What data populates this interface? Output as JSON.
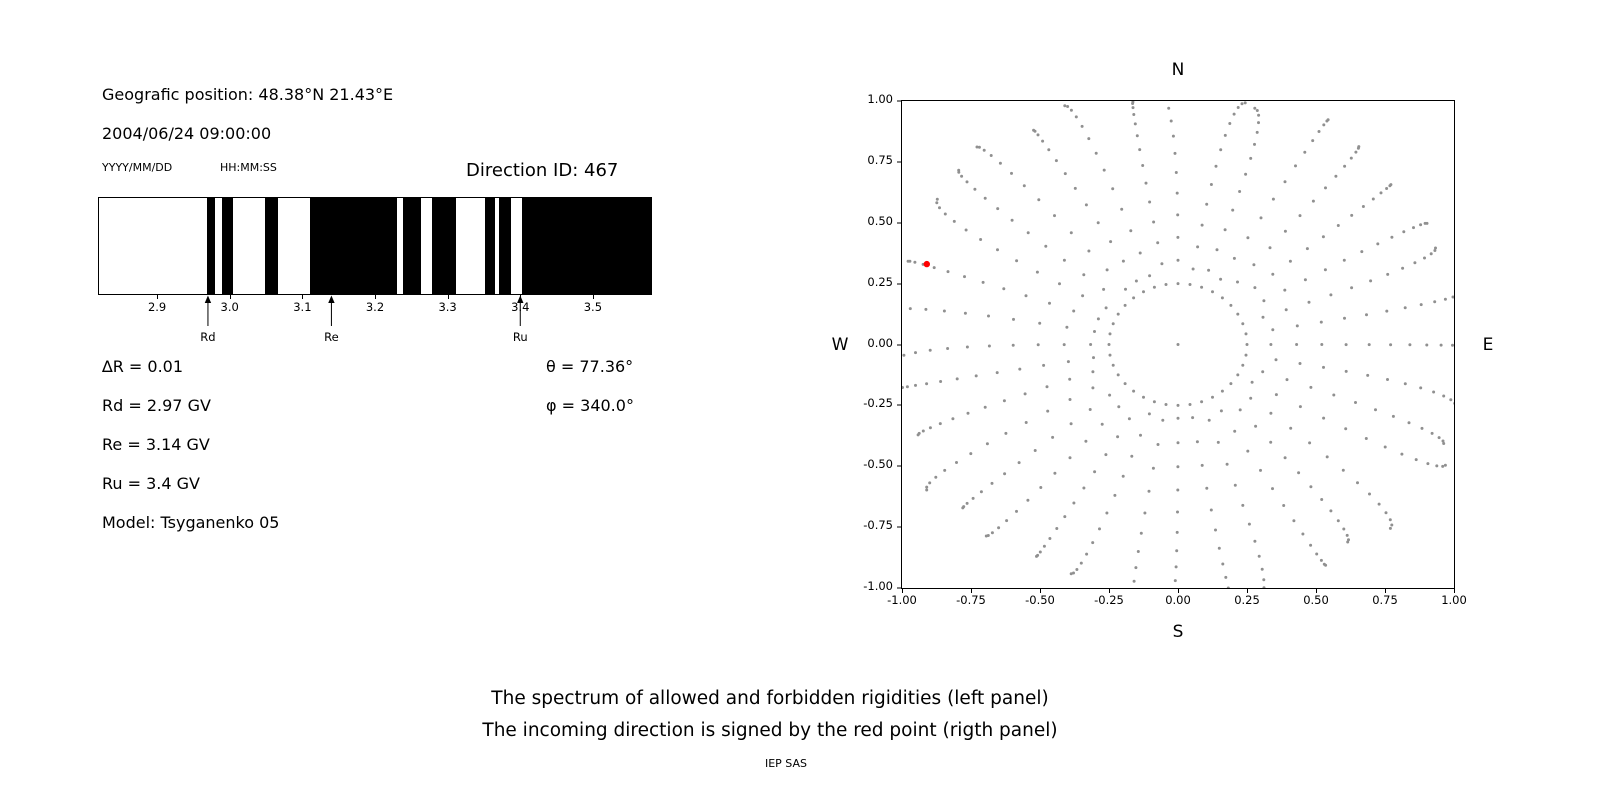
{
  "header": {
    "geo_position": "Geografic position: 48.38°N 21.43°E",
    "datetime": "2004/06/24 09:00:00",
    "date_format_label": "YYYY/MM/DD",
    "time_format_label": "HH:MM:SS",
    "direction_id": "Direction ID: 467"
  },
  "stats": {
    "delta_r": "∆R = 0.01",
    "rd": "Rd = 2.97 GV",
    "re": "Re = 3.14 GV",
    "ru": "Ru = 3.4 GV",
    "model": "Model: Tsyganenko 05",
    "theta": "θ = 77.36°",
    "phi": "φ = 340.0°"
  },
  "captions": {
    "line1": "The spectrum of allowed and forbidden rigidities (left panel)",
    "line2": "The incoming direction is signed by the red point (rigth panel)",
    "credit": "IEP SAS"
  },
  "colors": {
    "band_black": "#000000",
    "band_white": "#ffffff",
    "grid_dot": "#909090",
    "red_point": "#ff0000",
    "axis": "#000000"
  },
  "chart_data": [
    {
      "type": "bar",
      "xlim": [
        2.82,
        3.58
      ],
      "x_ticks": [
        "2.9",
        "3.0",
        "3.1",
        "3.2",
        "3.3",
        "3.4",
        "3.5"
      ],
      "x_tick_values": [
        2.9,
        3.0,
        3.1,
        3.2,
        3.3,
        3.4,
        3.5
      ],
      "black_bands": [
        [
          2.968,
          2.979
        ],
        [
          2.989,
          3.004
        ],
        [
          3.048,
          3.066
        ],
        [
          3.111,
          3.23
        ],
        [
          3.238,
          3.263
        ],
        [
          3.278,
          3.312
        ],
        [
          3.352,
          3.365
        ],
        [
          3.371,
          3.387
        ],
        [
          3.403,
          3.58
        ]
      ],
      "markers": [
        {
          "label": "Rd",
          "value": 2.97
        },
        {
          "label": "Re",
          "value": 3.14
        },
        {
          "label": "Ru",
          "value": 3.4
        }
      ]
    },
    {
      "type": "scatter",
      "compass_labels": {
        "n": "N",
        "s": "S",
        "e": "E",
        "w": "W"
      },
      "xlim": [
        -1,
        1
      ],
      "ylim": [
        -1,
        1
      ],
      "x_ticks": [
        "-1.00",
        "-0.75",
        "-0.50",
        "-0.25",
        "0.00",
        "0.25",
        "0.50",
        "0.75",
        "1.00"
      ],
      "y_ticks": [
        "1.00",
        "0.75",
        "0.50",
        "0.25",
        "0.00",
        "-0.25",
        "-0.50",
        "-0.75",
        "-1.00"
      ],
      "dot_color": "#909090",
      "red_point": {
        "x": -0.91,
        "y": 0.33,
        "color": "#ff0000"
      },
      "pattern": {
        "spoke_count": 36,
        "spoke_radius_start": 0.33,
        "spoke_radius_end": 1.05,
        "dots_per_spoke": 13,
        "inner_ring_radius": 0.25,
        "inner_ring_dots": 36,
        "center_dot": true
      }
    }
  ]
}
